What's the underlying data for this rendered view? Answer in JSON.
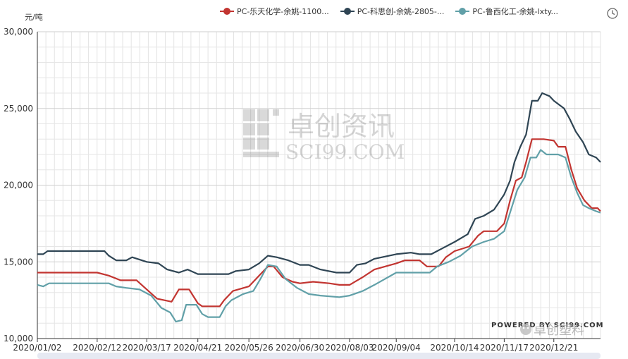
{
  "chart_data": {
    "type": "line",
    "ylabel": "元/吨",
    "ylim": [
      10000,
      30000
    ],
    "yticks": [
      "10,000",
      "15,000",
      "20,000",
      "25,000",
      "30,000"
    ],
    "ytick_values": [
      10000,
      15000,
      20000,
      25000,
      30000
    ],
    "x_tick_labels": [
      "2020/01/02",
      "2020/02/12",
      "2020/03/17",
      "2020/04/21",
      "2020/05/26",
      "2020/06/30",
      "2020/08/03",
      "2020/09/04",
      "2020/10/14",
      "2020/11/17",
      "2020/12/21"
    ],
    "grid": true,
    "legend_position": "top",
    "series": [
      {
        "name": "PC-乐天化学-余姚-1100...",
        "color": "#c23531",
        "values": [
          [
            "2020/01/02",
            14300
          ],
          [
            "2020/02/12",
            14300
          ],
          [
            "2020/02/20",
            14100
          ],
          [
            "2020/02/28",
            13800
          ],
          [
            "2020/03/10",
            13800
          ],
          [
            "2020/03/24",
            12600
          ],
          [
            "2020/04/03",
            12400
          ],
          [
            "2020/04/08",
            13200
          ],
          [
            "2020/04/15",
            13200
          ],
          [
            "2020/04/21",
            12300
          ],
          [
            "2020/04/24",
            12100
          ],
          [
            "2020/05/06",
            12100
          ],
          [
            "2020/05/09",
            12500
          ],
          [
            "2020/05/15",
            13100
          ],
          [
            "2020/05/26",
            13400
          ],
          [
            "2020/06/03",
            14200
          ],
          [
            "2020/06/08",
            14700
          ],
          [
            "2020/06/12",
            14700
          ],
          [
            "2020/06/18",
            14000
          ],
          [
            "2020/06/25",
            13700
          ],
          [
            "2020/06/30",
            13600
          ],
          [
            "2020/07/09",
            13700
          ],
          [
            "2020/07/20",
            13600
          ],
          [
            "2020/07/27",
            13500
          ],
          [
            "2020/08/03",
            13500
          ],
          [
            "2020/08/12",
            14000
          ],
          [
            "2020/08/20",
            14500
          ],
          [
            "2020/09/04",
            14900
          ],
          [
            "2020/09/10",
            15100
          ],
          [
            "2020/09/20",
            15100
          ],
          [
            "2020/09/25",
            14700
          ],
          [
            "2020/10/03",
            14700
          ],
          [
            "2020/10/08",
            15300
          ],
          [
            "2020/10/14",
            15700
          ],
          [
            "2020/10/24",
            16000
          ],
          [
            "2020/10/30",
            16700
          ],
          [
            "2020/11/03",
            17000
          ],
          [
            "2020/11/12",
            17000
          ],
          [
            "2020/11/17",
            17500
          ],
          [
            "2020/11/21",
            19000
          ],
          [
            "2020/11/25",
            20300
          ],
          [
            "2020/11/29",
            20500
          ],
          [
            "2020/12/02",
            21500
          ],
          [
            "2020/12/06",
            23000
          ],
          [
            "2020/12/14",
            23000
          ],
          [
            "2020/12/21",
            22900
          ],
          [
            "2020/12/24",
            22500
          ],
          [
            "2020/12/29",
            22500
          ],
          [
            "2021/01/02",
            21000
          ],
          [
            "2021/01/06",
            19800
          ],
          [
            "2021/01/11",
            19000
          ],
          [
            "2021/01/16",
            18500
          ],
          [
            "2021/01/20",
            18500
          ],
          [
            "2021/01/22",
            18300
          ]
        ]
      },
      {
        "name": "PC-科思创-余姚-2805-...",
        "color": "#2f4554",
        "values": [
          [
            "2020/01/02",
            15500
          ],
          [
            "2020/01/06",
            15500
          ],
          [
            "2020/01/09",
            15700
          ],
          [
            "2020/02/12",
            15700
          ],
          [
            "2020/02/17",
            15700
          ],
          [
            "2020/02/20",
            15400
          ],
          [
            "2020/02/25",
            15100
          ],
          [
            "2020/03/03",
            15100
          ],
          [
            "2020/03/07",
            15300
          ],
          [
            "2020/03/17",
            15000
          ],
          [
            "2020/03/25",
            14900
          ],
          [
            "2020/03/31",
            14500
          ],
          [
            "2020/04/08",
            14300
          ],
          [
            "2020/04/14",
            14500
          ],
          [
            "2020/04/21",
            14200
          ],
          [
            "2020/05/12",
            14200
          ],
          [
            "2020/05/17",
            14400
          ],
          [
            "2020/05/26",
            14500
          ],
          [
            "2020/06/02",
            14900
          ],
          [
            "2020/06/08",
            15400
          ],
          [
            "2020/06/14",
            15300
          ],
          [
            "2020/06/22",
            15100
          ],
          [
            "2020/06/30",
            14800
          ],
          [
            "2020/07/06",
            14800
          ],
          [
            "2020/07/14",
            14500
          ],
          [
            "2020/07/25",
            14300
          ],
          [
            "2020/08/03",
            14300
          ],
          [
            "2020/08/08",
            14800
          ],
          [
            "2020/08/14",
            14900
          ],
          [
            "2020/08/20",
            15200
          ],
          [
            "2020/09/04",
            15500
          ],
          [
            "2020/09/14",
            15600
          ],
          [
            "2020/09/20",
            15500
          ],
          [
            "2020/09/28",
            15500
          ],
          [
            "2020/10/06",
            15900
          ],
          [
            "2020/10/14",
            16300
          ],
          [
            "2020/10/23",
            16800
          ],
          [
            "2020/10/28",
            17800
          ],
          [
            "2020/11/03",
            18000
          ],
          [
            "2020/11/10",
            18400
          ],
          [
            "2020/11/17",
            19400
          ],
          [
            "2020/11/21",
            20300
          ],
          [
            "2020/11/24",
            21500
          ],
          [
            "2020/11/28",
            22500
          ],
          [
            "2020/12/02",
            23300
          ],
          [
            "2020/12/06",
            25500
          ],
          [
            "2020/12/10",
            25500
          ],
          [
            "2020/12/13",
            26000
          ],
          [
            "2020/12/18",
            25800
          ],
          [
            "2020/12/21",
            25500
          ],
          [
            "2020/12/28",
            25000
          ],
          [
            "2021/01/01",
            24300
          ],
          [
            "2021/01/05",
            23500
          ],
          [
            "2021/01/10",
            22800
          ],
          [
            "2021/01/14",
            22000
          ],
          [
            "2021/01/19",
            21800
          ],
          [
            "2021/01/22",
            21500
          ]
        ]
      },
      {
        "name": "PC-鲁西化工-余姚-lxty...",
        "color": "#61a0a8",
        "values": [
          [
            "2020/01/02",
            13500
          ],
          [
            "2020/01/06",
            13400
          ],
          [
            "2020/01/10",
            13600
          ],
          [
            "2020/02/12",
            13600
          ],
          [
            "2020/02/20",
            13600
          ],
          [
            "2020/02/25",
            13400
          ],
          [
            "2020/03/03",
            13300
          ],
          [
            "2020/03/12",
            13200
          ],
          [
            "2020/03/20",
            12800
          ],
          [
            "2020/03/27",
            12000
          ],
          [
            "2020/04/02",
            11700
          ],
          [
            "2020/04/06",
            11100
          ],
          [
            "2020/04/10",
            11200
          ],
          [
            "2020/04/13",
            12200
          ],
          [
            "2020/04/20",
            12200
          ],
          [
            "2020/04/24",
            11600
          ],
          [
            "2020/04/28",
            11400
          ],
          [
            "2020/05/06",
            11400
          ],
          [
            "2020/05/10",
            12100
          ],
          [
            "2020/05/14",
            12500
          ],
          [
            "2020/05/22",
            12900
          ],
          [
            "2020/05/29",
            13100
          ],
          [
            "2020/06/03",
            13900
          ],
          [
            "2020/06/08",
            14800
          ],
          [
            "2020/06/14",
            14700
          ],
          [
            "2020/06/20",
            13900
          ],
          [
            "2020/06/28",
            13300
          ],
          [
            "2020/07/06",
            12900
          ],
          [
            "2020/07/14",
            12800
          ],
          [
            "2020/07/27",
            12700
          ],
          [
            "2020/08/03",
            12800
          ],
          [
            "2020/08/12",
            13100
          ],
          [
            "2020/08/20",
            13500
          ],
          [
            "2020/09/04",
            14300
          ],
          [
            "2020/09/16",
            14300
          ],
          [
            "2020/09/27",
            14300
          ],
          [
            "2020/10/02",
            14700
          ],
          [
            "2020/10/10",
            15000
          ],
          [
            "2020/10/18",
            15400
          ],
          [
            "2020/10/26",
            16000
          ],
          [
            "2020/11/03",
            16300
          ],
          [
            "2020/11/10",
            16500
          ],
          [
            "2020/11/17",
            17000
          ],
          [
            "2020/11/22",
            18500
          ],
          [
            "2020/11/26",
            19700
          ],
          [
            "2020/12/01",
            20500
          ],
          [
            "2020/12/05",
            21800
          ],
          [
            "2020/12/09",
            21800
          ],
          [
            "2020/12/12",
            22300
          ],
          [
            "2020/12/16",
            22000
          ],
          [
            "2020/12/24",
            22000
          ],
          [
            "2020/12/29",
            21800
          ],
          [
            "2021/01/02",
            20500
          ],
          [
            "2021/01/06",
            19500
          ],
          [
            "2021/01/10",
            18700
          ],
          [
            "2021/01/14",
            18500
          ],
          [
            "2021/01/19",
            18300
          ],
          [
            "2021/01/22",
            18200
          ]
        ]
      }
    ]
  },
  "watermark": {
    "cn": "卓创资讯",
    "en": "SCI99.COM",
    "powered": "POWERED BY SCI99.COM",
    "brand": "卓创塑料"
  },
  "toolbar": {
    "icon": "clock-refresh-icon"
  }
}
